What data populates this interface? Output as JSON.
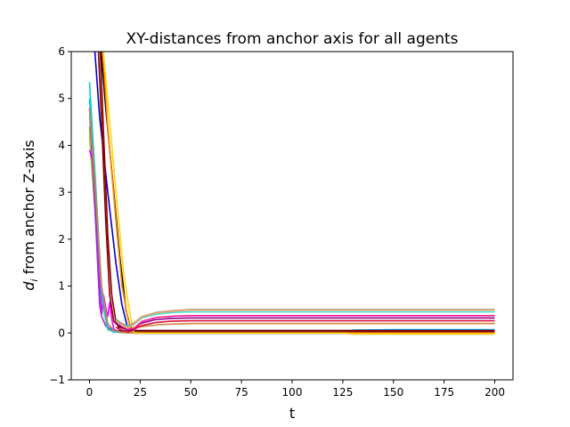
{
  "chart_data": {
    "type": "line",
    "title": "XY-distances from anchor axis for all agents",
    "xlabel": "t",
    "ylabel_main": "d",
    "ylabel_sub": "i",
    "ylabel_rest": " from anchor Z-axis",
    "xlim": [
      -9,
      209
    ],
    "ylim": [
      -1,
      6
    ],
    "xticks": [
      0,
      25,
      50,
      75,
      100,
      125,
      150,
      175,
      200
    ],
    "yticks": [
      -1,
      0,
      1,
      2,
      3,
      4,
      5,
      6
    ],
    "grid": false,
    "legend": "none",
    "series": [
      {
        "color": "#6b8e23",
        "points": [
          [
            0,
            4.4
          ],
          [
            3,
            2.6
          ],
          [
            6,
            0.7
          ],
          [
            9,
            0.08
          ],
          [
            12,
            0.02
          ],
          [
            20,
            0.02
          ],
          [
            125,
            0.02
          ],
          [
            200,
            0.02
          ]
        ]
      },
      {
        "color": "#9acd32",
        "points": [
          [
            0,
            4.2
          ],
          [
            3,
            2.4
          ],
          [
            6,
            0.6
          ],
          [
            9,
            0.06
          ],
          [
            12,
            0.03
          ],
          [
            20,
            0.03
          ],
          [
            125,
            0.03
          ],
          [
            200,
            0.03
          ]
        ]
      },
      {
        "color": "#90ee90",
        "points": [
          [
            0,
            4.6
          ],
          [
            3,
            2.7
          ],
          [
            6,
            0.6
          ],
          [
            9,
            0.08
          ],
          [
            12,
            0.04
          ],
          [
            20,
            0.04
          ],
          [
            125,
            0.04
          ],
          [
            200,
            0.04
          ]
        ]
      },
      {
        "color": "#00ced1",
        "points": [
          [
            0,
            5.35
          ],
          [
            3,
            3.2
          ],
          [
            6,
            0.9
          ],
          [
            9,
            0.1
          ],
          [
            12,
            0.05
          ],
          [
            20,
            0.05
          ],
          [
            125,
            0.05
          ],
          [
            200,
            0.06
          ]
        ]
      },
      {
        "color": "#ff00ff",
        "points": [
          [
            0,
            3.9
          ],
          [
            2,
            3.6
          ],
          [
            4,
            1.8
          ],
          [
            6,
            0.4
          ],
          [
            7,
            0.8
          ],
          [
            8,
            0.55
          ],
          [
            9,
            0.35
          ],
          [
            10,
            0.65
          ],
          [
            11,
            0.3
          ],
          [
            12,
            0.08
          ],
          [
            15,
            0.02
          ],
          [
            20,
            0.02
          ],
          [
            200,
            0.02
          ]
        ]
      },
      {
        "color": "#9932cc",
        "points": [
          [
            0,
            4.8
          ],
          [
            3,
            2.4
          ],
          [
            5,
            0.6
          ],
          [
            6,
            0.35
          ],
          [
            8,
            0.15
          ],
          [
            12,
            0.05
          ],
          [
            20,
            0.01
          ],
          [
            200,
            0.01
          ]
        ]
      },
      {
        "color": "#00bfff",
        "points": [
          [
            0,
            5.0
          ],
          [
            3,
            3.0
          ],
          [
            6,
            0.8
          ],
          [
            9,
            0.1
          ],
          [
            12,
            0.02
          ],
          [
            20,
            0.0
          ],
          [
            125,
            0.0
          ],
          [
            130,
            0.06
          ],
          [
            150,
            0.07
          ],
          [
            200,
            0.07
          ]
        ]
      },
      {
        "color": "#0000cd",
        "points": [
          [
            2,
            6.4
          ],
          [
            5,
            4.6
          ],
          [
            9,
            3.0
          ],
          [
            13,
            1.5
          ],
          [
            16,
            0.6
          ],
          [
            19,
            0.08
          ],
          [
            22,
            0.0
          ],
          [
            125,
            0.0
          ],
          [
            130,
            0.05
          ],
          [
            200,
            0.05
          ]
        ]
      },
      {
        "color": "#000000",
        "points": [
          [
            5,
            6.4
          ],
          [
            8,
            4.8
          ],
          [
            12,
            3.0
          ],
          [
            15,
            1.6
          ],
          [
            18,
            0.5
          ],
          [
            20,
            0.15
          ],
          [
            22,
            0.0
          ],
          [
            125,
            0.0
          ],
          [
            130,
            -0.02
          ],
          [
            200,
            -0.02
          ]
        ]
      },
      {
        "color": "#800000",
        "points": [
          [
            4,
            6.4
          ],
          [
            6,
            4.5
          ],
          [
            8,
            2.4
          ],
          [
            10,
            0.8
          ],
          [
            12,
            0.25
          ],
          [
            15,
            0.12
          ],
          [
            20,
            0.05
          ],
          [
            200,
            0.05
          ]
        ]
      },
      {
        "color": "#8b0000",
        "points": [
          [
            5,
            6.4
          ],
          [
            7,
            4.2
          ],
          [
            9,
            2.1
          ],
          [
            11,
            0.8
          ],
          [
            13,
            0.25
          ],
          [
            15,
            0.05
          ],
          [
            20,
            0.02
          ],
          [
            200,
            0.02
          ]
        ]
      },
      {
        "color": "#ff8c00",
        "points": [
          [
            6,
            6.4
          ],
          [
            9,
            4.4
          ],
          [
            13,
            2.4
          ],
          [
            16,
            1.0
          ],
          [
            19,
            0.3
          ],
          [
            21,
            0.0
          ],
          [
            200,
            0.0
          ]
        ]
      },
      {
        "color": "#ffd700",
        "points": [
          [
            6,
            6.4
          ],
          [
            10,
            4.5
          ],
          [
            14,
            2.6
          ],
          [
            17,
            1.2
          ],
          [
            20,
            0.4
          ],
          [
            22,
            0.0
          ],
          [
            125,
            0.0
          ],
          [
            130,
            -0.02
          ],
          [
            200,
            -0.02
          ]
        ]
      },
      {
        "color": "#cd853f",
        "points": [
          [
            0,
            4.8
          ],
          [
            3,
            3.0
          ],
          [
            6,
            1.0
          ],
          [
            9,
            0.2
          ],
          [
            12,
            0.05
          ],
          [
            16,
            0.01
          ],
          [
            20,
            0.0
          ],
          [
            22,
            0.1
          ],
          [
            28,
            0.15
          ],
          [
            35,
            0.18
          ],
          [
            50,
            0.2
          ],
          [
            200,
            0.2
          ]
        ]
      },
      {
        "color": "#dc143c",
        "points": [
          [
            13,
            0.12
          ],
          [
            16,
            0.06
          ],
          [
            19,
            0.02
          ],
          [
            21,
            0.05
          ],
          [
            25,
            0.15
          ],
          [
            32,
            0.22
          ],
          [
            40,
            0.25
          ],
          [
            50,
            0.26
          ],
          [
            200,
            0.26
          ]
        ]
      },
      {
        "color": "#8b008b",
        "points": [
          [
            13,
            0.2
          ],
          [
            16,
            0.12
          ],
          [
            19,
            0.06
          ],
          [
            21,
            0.06
          ],
          [
            25,
            0.2
          ],
          [
            32,
            0.28
          ],
          [
            40,
            0.31
          ],
          [
            50,
            0.32
          ],
          [
            200,
            0.32
          ]
        ]
      },
      {
        "color": "#ff1493",
        "points": [
          [
            13,
            0.25
          ],
          [
            16,
            0.15
          ],
          [
            19,
            0.08
          ],
          [
            22,
            0.1
          ],
          [
            26,
            0.25
          ],
          [
            33,
            0.33
          ],
          [
            42,
            0.36
          ],
          [
            50,
            0.37
          ],
          [
            200,
            0.37
          ]
        ]
      },
      {
        "color": "#40e0d0",
        "points": [
          [
            13,
            0.3
          ],
          [
            16,
            0.2
          ],
          [
            19,
            0.12
          ],
          [
            22,
            0.18
          ],
          [
            26,
            0.32
          ],
          [
            33,
            0.4
          ],
          [
            42,
            0.44
          ],
          [
            50,
            0.45
          ],
          [
            200,
            0.45
          ]
        ]
      },
      {
        "color": "#999999",
        "points": [
          [
            13,
            0.28
          ],
          [
            16,
            0.2
          ],
          [
            19,
            0.15
          ],
          [
            22,
            0.22
          ],
          [
            26,
            0.35
          ],
          [
            33,
            0.44
          ],
          [
            42,
            0.48
          ],
          [
            50,
            0.5
          ],
          [
            200,
            0.5
          ]
        ]
      },
      {
        "color": "#f4a460",
        "points": [
          [
            13,
            0.26
          ],
          [
            16,
            0.16
          ],
          [
            19,
            0.1
          ],
          [
            22,
            0.2
          ],
          [
            26,
            0.34
          ],
          [
            33,
            0.43
          ],
          [
            42,
            0.47
          ],
          [
            50,
            0.49
          ],
          [
            200,
            0.49
          ]
        ]
      }
    ]
  }
}
